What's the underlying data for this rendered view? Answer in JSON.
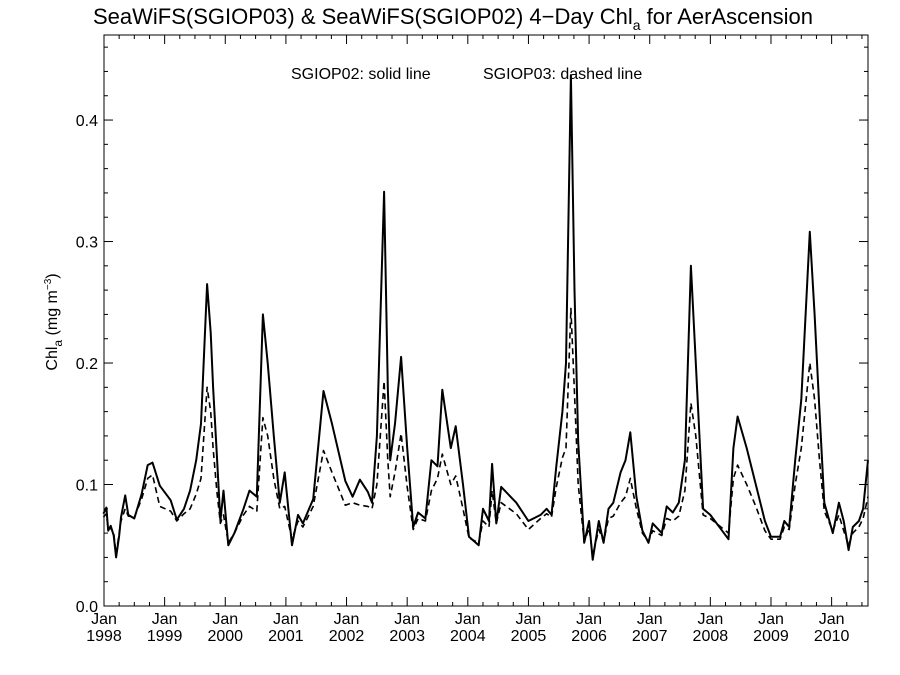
{
  "chart_data": {
    "type": "line",
    "title": {
      "main": "SeaWiFS(SGIOP03) & SeaWiFS(SGIOP02) 4−Day Chl",
      "sub": "a",
      "tail": " for AerAscension"
    },
    "annotation": {
      "solid": "SGIOP02: solid line",
      "dashed": "SGIOP03: dashed line"
    },
    "ylabel": {
      "main": "Chl",
      "sub": "a",
      "rest": " (mg m",
      "sup": "−3",
      "close": ")"
    },
    "xlim": [
      1998.0,
      2010.6
    ],
    "ylim": [
      0.0,
      0.47
    ],
    "y_ticks": [
      {
        "value": 0.0,
        "label": "0.0"
      },
      {
        "value": 0.1,
        "label": "0.1"
      },
      {
        "value": 0.2,
        "label": "0.2"
      },
      {
        "value": 0.3,
        "label": "0.3"
      },
      {
        "value": 0.4,
        "label": "0.4"
      }
    ],
    "x_ticks": [
      {
        "value": 1998,
        "month": "Jan",
        "year": "1998"
      },
      {
        "value": 1999,
        "month": "Jan",
        "year": "1999"
      },
      {
        "value": 2000,
        "month": "Jan",
        "year": "2000"
      },
      {
        "value": 2001,
        "month": "Jan",
        "year": "2001"
      },
      {
        "value": 2002,
        "month": "Jan",
        "year": "2002"
      },
      {
        "value": 2003,
        "month": "Jan",
        "year": "2003"
      },
      {
        "value": 2004,
        "month": "Jan",
        "year": "2004"
      },
      {
        "value": 2005,
        "month": "Jan",
        "year": "2005"
      },
      {
        "value": 2006,
        "month": "Jan",
        "year": "2006"
      },
      {
        "value": 2007,
        "month": "Jan",
        "year": "2007"
      },
      {
        "value": 2008,
        "month": "Jan",
        "year": "2008"
      },
      {
        "value": 2009,
        "month": "Jan",
        "year": "2009"
      },
      {
        "value": 2010,
        "month": "Jan",
        "year": "2010"
      }
    ],
    "series": [
      {
        "name": "SGIOP02",
        "style": "solid",
        "color": "#000000",
        "points": [
          [
            1997.99,
            0.076
          ],
          [
            1998.04,
            0.081
          ],
          [
            1998.07,
            0.062
          ],
          [
            1998.11,
            0.066
          ],
          [
            1998.16,
            0.058
          ],
          [
            1998.2,
            0.04
          ],
          [
            1998.25,
            0.058
          ],
          [
            1998.28,
            0.073
          ],
          [
            1998.35,
            0.091
          ],
          [
            1998.4,
            0.075
          ],
          [
            1998.5,
            0.072
          ],
          [
            1998.62,
            0.092
          ],
          [
            1998.72,
            0.116
          ],
          [
            1998.8,
            0.118
          ],
          [
            1998.92,
            0.099
          ],
          [
            1999.1,
            0.087
          ],
          [
            1999.2,
            0.071
          ],
          [
            1999.32,
            0.08
          ],
          [
            1999.42,
            0.095
          ],
          [
            1999.52,
            0.12
          ],
          [
            1999.6,
            0.15
          ],
          [
            1999.7,
            0.265
          ],
          [
            1999.76,
            0.225
          ],
          [
            1999.8,
            0.18
          ],
          [
            1999.86,
            0.125
          ],
          [
            1999.92,
            0.07
          ],
          [
            1999.97,
            0.095
          ],
          [
            2000.05,
            0.05
          ],
          [
            2000.15,
            0.06
          ],
          [
            2000.3,
            0.08
          ],
          [
            2000.4,
            0.095
          ],
          [
            2000.52,
            0.09
          ],
          [
            2000.62,
            0.24
          ],
          [
            2000.7,
            0.2
          ],
          [
            2000.8,
            0.14
          ],
          [
            2000.9,
            0.085
          ],
          [
            2000.98,
            0.11
          ],
          [
            2001.1,
            0.05
          ],
          [
            2001.2,
            0.075
          ],
          [
            2001.28,
            0.068
          ],
          [
            2001.45,
            0.088
          ],
          [
            2001.62,
            0.177
          ],
          [
            2001.76,
            0.15
          ],
          [
            2001.98,
            0.103
          ],
          [
            2002.1,
            0.09
          ],
          [
            2002.22,
            0.104
          ],
          [
            2002.35,
            0.094
          ],
          [
            2002.42,
            0.085
          ],
          [
            2002.5,
            0.14
          ],
          [
            2002.62,
            0.341
          ],
          [
            2002.68,
            0.18
          ],
          [
            2002.72,
            0.12
          ],
          [
            2002.8,
            0.15
          ],
          [
            2002.9,
            0.205
          ],
          [
            2003.0,
            0.13
          ],
          [
            2003.1,
            0.065
          ],
          [
            2003.18,
            0.077
          ],
          [
            2003.3,
            0.072
          ],
          [
            2003.4,
            0.12
          ],
          [
            2003.5,
            0.115
          ],
          [
            2003.58,
            0.178
          ],
          [
            2003.72,
            0.13
          ],
          [
            2003.8,
            0.148
          ],
          [
            2003.92,
            0.1
          ],
          [
            2004.02,
            0.057
          ],
          [
            2004.18,
            0.05
          ],
          [
            2004.25,
            0.08
          ],
          [
            2004.35,
            0.07
          ],
          [
            2004.4,
            0.117
          ],
          [
            2004.47,
            0.068
          ],
          [
            2004.55,
            0.098
          ],
          [
            2004.8,
            0.085
          ],
          [
            2005.0,
            0.07
          ],
          [
            2005.2,
            0.075
          ],
          [
            2005.3,
            0.08
          ],
          [
            2005.38,
            0.075
          ],
          [
            2005.46,
            0.115
          ],
          [
            2005.56,
            0.16
          ],
          [
            2005.62,
            0.2
          ],
          [
            2005.7,
            0.437
          ],
          [
            2005.76,
            0.26
          ],
          [
            2005.82,
            0.135
          ],
          [
            2005.92,
            0.052
          ],
          [
            2006.0,
            0.07
          ],
          [
            2006.06,
            0.038
          ],
          [
            2006.16,
            0.07
          ],
          [
            2006.24,
            0.052
          ],
          [
            2006.32,
            0.08
          ],
          [
            2006.4,
            0.085
          ],
          [
            2006.52,
            0.11
          ],
          [
            2006.6,
            0.12
          ],
          [
            2006.68,
            0.143
          ],
          [
            2006.78,
            0.09
          ],
          [
            2006.88,
            0.062
          ],
          [
            2006.98,
            0.052
          ],
          [
            2007.05,
            0.068
          ],
          [
            2007.2,
            0.06
          ],
          [
            2007.28,
            0.082
          ],
          [
            2007.38,
            0.077
          ],
          [
            2007.48,
            0.085
          ],
          [
            2007.58,
            0.12
          ],
          [
            2007.68,
            0.28
          ],
          [
            2007.76,
            0.2
          ],
          [
            2007.88,
            0.08
          ],
          [
            2008.0,
            0.075
          ],
          [
            2008.3,
            0.055
          ],
          [
            2008.38,
            0.13
          ],
          [
            2008.45,
            0.156
          ],
          [
            2008.6,
            0.13
          ],
          [
            2008.75,
            0.1
          ],
          [
            2008.9,
            0.07
          ],
          [
            2009.0,
            0.057
          ],
          [
            2009.15,
            0.057
          ],
          [
            2009.22,
            0.07
          ],
          [
            2009.3,
            0.065
          ],
          [
            2009.4,
            0.12
          ],
          [
            2009.5,
            0.17
          ],
          [
            2009.64,
            0.308
          ],
          [
            2009.72,
            0.24
          ],
          [
            2009.8,
            0.16
          ],
          [
            2009.88,
            0.085
          ],
          [
            2010.02,
            0.06
          ],
          [
            2010.08,
            0.075
          ],
          [
            2010.12,
            0.085
          ],
          [
            2010.2,
            0.07
          ],
          [
            2010.28,
            0.046
          ],
          [
            2010.35,
            0.065
          ],
          [
            2010.45,
            0.07
          ],
          [
            2010.52,
            0.08
          ],
          [
            2010.6,
            0.12
          ]
        ]
      },
      {
        "name": "SGIOP03",
        "style": "dashed",
        "color": "#000000",
        "points": [
          [
            1997.99,
            0.073
          ],
          [
            1998.04,
            0.076
          ],
          [
            1998.07,
            0.063
          ],
          [
            1998.11,
            0.064
          ],
          [
            1998.16,
            0.06
          ],
          [
            1998.2,
            0.043
          ],
          [
            1998.25,
            0.06
          ],
          [
            1998.28,
            0.07
          ],
          [
            1998.35,
            0.08
          ],
          [
            1998.4,
            0.074
          ],
          [
            1998.5,
            0.073
          ],
          [
            1998.62,
            0.088
          ],
          [
            1998.72,
            0.105
          ],
          [
            1998.8,
            0.108
          ],
          [
            1998.92,
            0.082
          ],
          [
            1999.1,
            0.078
          ],
          [
            1999.2,
            0.07
          ],
          [
            1999.32,
            0.076
          ],
          [
            1999.42,
            0.08
          ],
          [
            1999.52,
            0.092
          ],
          [
            1999.6,
            0.105
          ],
          [
            1999.7,
            0.18
          ],
          [
            1999.76,
            0.16
          ],
          [
            1999.8,
            0.13
          ],
          [
            1999.86,
            0.095
          ],
          [
            1999.92,
            0.068
          ],
          [
            1999.97,
            0.075
          ],
          [
            2000.05,
            0.052
          ],
          [
            2000.15,
            0.06
          ],
          [
            2000.3,
            0.075
          ],
          [
            2000.4,
            0.082
          ],
          [
            2000.52,
            0.078
          ],
          [
            2000.62,
            0.155
          ],
          [
            2000.7,
            0.14
          ],
          [
            2000.8,
            0.105
          ],
          [
            2000.9,
            0.08
          ],
          [
            2000.98,
            0.082
          ],
          [
            2001.1,
            0.055
          ],
          [
            2001.2,
            0.07
          ],
          [
            2001.28,
            0.065
          ],
          [
            2001.45,
            0.082
          ],
          [
            2001.62,
            0.128
          ],
          [
            2001.76,
            0.11
          ],
          [
            2001.98,
            0.083
          ],
          [
            2002.1,
            0.085
          ],
          [
            2002.22,
            0.083
          ],
          [
            2002.35,
            0.082
          ],
          [
            2002.42,
            0.08
          ],
          [
            2002.5,
            0.1
          ],
          [
            2002.62,
            0.185
          ],
          [
            2002.68,
            0.12
          ],
          [
            2002.72,
            0.09
          ],
          [
            2002.8,
            0.11
          ],
          [
            2002.9,
            0.142
          ],
          [
            2003.0,
            0.098
          ],
          [
            2003.1,
            0.063
          ],
          [
            2003.18,
            0.072
          ],
          [
            2003.3,
            0.07
          ],
          [
            2003.4,
            0.095
          ],
          [
            2003.5,
            0.105
          ],
          [
            2003.58,
            0.125
          ],
          [
            2003.72,
            0.1
          ],
          [
            2003.8,
            0.107
          ],
          [
            2003.92,
            0.08
          ],
          [
            2004.02,
            0.056
          ],
          [
            2004.18,
            0.052
          ],
          [
            2004.25,
            0.07
          ],
          [
            2004.35,
            0.065
          ],
          [
            2004.4,
            0.095
          ],
          [
            2004.47,
            0.068
          ],
          [
            2004.55,
            0.085
          ],
          [
            2004.8,
            0.076
          ],
          [
            2005.0,
            0.063
          ],
          [
            2005.2,
            0.072
          ],
          [
            2005.3,
            0.076
          ],
          [
            2005.38,
            0.073
          ],
          [
            2005.46,
            0.098
          ],
          [
            2005.56,
            0.122
          ],
          [
            2005.62,
            0.13
          ],
          [
            2005.7,
            0.245
          ],
          [
            2005.76,
            0.175
          ],
          [
            2005.82,
            0.1
          ],
          [
            2005.92,
            0.053
          ],
          [
            2006.0,
            0.064
          ],
          [
            2006.06,
            0.042
          ],
          [
            2006.16,
            0.063
          ],
          [
            2006.24,
            0.053
          ],
          [
            2006.32,
            0.072
          ],
          [
            2006.4,
            0.074
          ],
          [
            2006.52,
            0.085
          ],
          [
            2006.6,
            0.09
          ],
          [
            2006.68,
            0.105
          ],
          [
            2006.78,
            0.08
          ],
          [
            2006.88,
            0.06
          ],
          [
            2006.98,
            0.053
          ],
          [
            2007.05,
            0.062
          ],
          [
            2007.2,
            0.058
          ],
          [
            2007.28,
            0.072
          ],
          [
            2007.38,
            0.07
          ],
          [
            2007.48,
            0.074
          ],
          [
            2007.58,
            0.095
          ],
          [
            2007.68,
            0.167
          ],
          [
            2007.76,
            0.14
          ],
          [
            2007.88,
            0.075
          ],
          [
            2008.0,
            0.072
          ],
          [
            2008.3,
            0.06
          ],
          [
            2008.38,
            0.105
          ],
          [
            2008.45,
            0.116
          ],
          [
            2008.6,
            0.1
          ],
          [
            2008.75,
            0.082
          ],
          [
            2008.9,
            0.062
          ],
          [
            2009.0,
            0.055
          ],
          [
            2009.15,
            0.055
          ],
          [
            2009.22,
            0.065
          ],
          [
            2009.3,
            0.063
          ],
          [
            2009.4,
            0.1
          ],
          [
            2009.5,
            0.13
          ],
          [
            2009.64,
            0.2
          ],
          [
            2009.72,
            0.17
          ],
          [
            2009.8,
            0.12
          ],
          [
            2009.88,
            0.078
          ],
          [
            2010.02,
            0.062
          ],
          [
            2010.08,
            0.07
          ],
          [
            2010.12,
            0.075
          ],
          [
            2010.2,
            0.062
          ],
          [
            2010.28,
            0.05
          ],
          [
            2010.35,
            0.06
          ],
          [
            2010.45,
            0.065
          ],
          [
            2010.52,
            0.072
          ],
          [
            2010.6,
            0.09
          ]
        ]
      }
    ]
  }
}
